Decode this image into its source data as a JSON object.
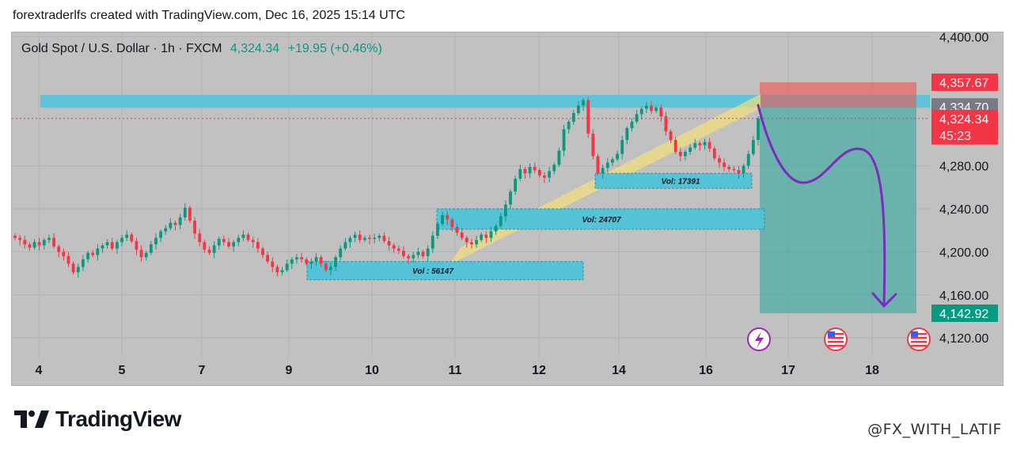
{
  "header": {
    "attribution": "forextraderlfs created with TradingView.com, Dec 16, 2025 15:14 UTC"
  },
  "legend": {
    "symbol": "Gold Spot / U.S. Dollar · 1h · FXCM",
    "last_price": "4,324.34",
    "change": "+19.95 (+0.46%)"
  },
  "colors": {
    "background": "#c1c1c1",
    "up": "#089981",
    "down": "#f23645",
    "zone": "#4fc3d9",
    "channel": "#f4e07a",
    "arrow": "#7b2cbf",
    "tp_zone": "#26a69a",
    "sl_zone": "#ef5350"
  },
  "badges": {
    "stop_loss": "4,357.67",
    "entry": "4,334.70",
    "current": "4,324.34",
    "countdown": "45:23",
    "take_profit": "4,142.92"
  },
  "branding": {
    "logo_text": "TradingView",
    "watermark": "@FX_WITH_LATIF"
  },
  "chart_data": {
    "type": "candlestick",
    "symbol": "Gold Spot / U.S. Dollar",
    "interval": "1h",
    "y_ticks": [
      "4,400.00",
      "4,280.00",
      "4,240.00",
      "4,200.00",
      "4,160.00",
      "4,120.00"
    ],
    "y_tick_values": [
      4400,
      4280,
      4240,
      4200,
      4160,
      4120
    ],
    "x_ticks": [
      "4",
      "5",
      "7",
      "9",
      "10",
      "11",
      "12",
      "14",
      "16",
      "17",
      "18"
    ],
    "ylim": [
      4076,
      4404
    ],
    "grid": true,
    "resistance_zone": [
      4334,
      4346
    ],
    "position": {
      "entry": 4334.7,
      "stop": 4357.67,
      "target": 4142.92
    },
    "volume_boxes": [
      {
        "label": "Vol : 56147",
        "low": 4174,
        "high": 4191
      },
      {
        "label": "Vol: 24707",
        "low": 4221,
        "high": 4240
      },
      {
        "label": "Vol: 17391",
        "low": 4259,
        "high": 4273
      }
    ],
    "closes": [
      4213,
      4211,
      4207,
      4204,
      4209,
      4206,
      4211,
      4213,
      4205,
      4200,
      4196,
      4189,
      4181,
      4186,
      4193,
      4199,
      4197,
      4203,
      4206,
      4209,
      4203,
      4209,
      4213,
      4216,
      4210,
      4202,
      4195,
      4199,
      4207,
      4213,
      4219,
      4222,
      4227,
      4225,
      4232,
      4241,
      4229,
      4217,
      4209,
      4202,
      4199,
      4206,
      4212,
      4209,
      4205,
      4209,
      4213,
      4216,
      4211,
      4209,
      4203,
      4197,
      4191,
      4186,
      4181,
      4183,
      4189,
      4193,
      4195,
      4193,
      4189,
      4191,
      4195,
      4189,
      4183,
      4186,
      4195,
      4203,
      4209,
      4213,
      4216,
      4211,
      4213,
      4212,
      4213,
      4215,
      4210,
      4206,
      4203,
      4201,
      4196,
      4194,
      4197,
      4200,
      4196,
      4203,
      4215,
      4226,
      4234,
      4230,
      4223,
      4218,
      4213,
      4209,
      4207,
      4211,
      4216,
      4213,
      4219,
      4224,
      4233,
      4244,
      4256,
      4268,
      4277,
      4273,
      4279,
      4276,
      4271,
      4269,
      4275,
      4281,
      4294,
      4314,
      4321,
      4329,
      4336,
      4341,
      4310,
      4289,
      4273,
      4278,
      4283,
      4286,
      4291,
      4304,
      4315,
      4321,
      4328,
      4333,
      4336,
      4331,
      4334,
      4326,
      4312,
      4304,
      4293,
      4289,
      4293,
      4297,
      4301,
      4299,
      4302,
      4296,
      4287,
      4283,
      4279,
      4277,
      4276,
      4273,
      4280,
      4291,
      4304,
      4324
    ]
  }
}
